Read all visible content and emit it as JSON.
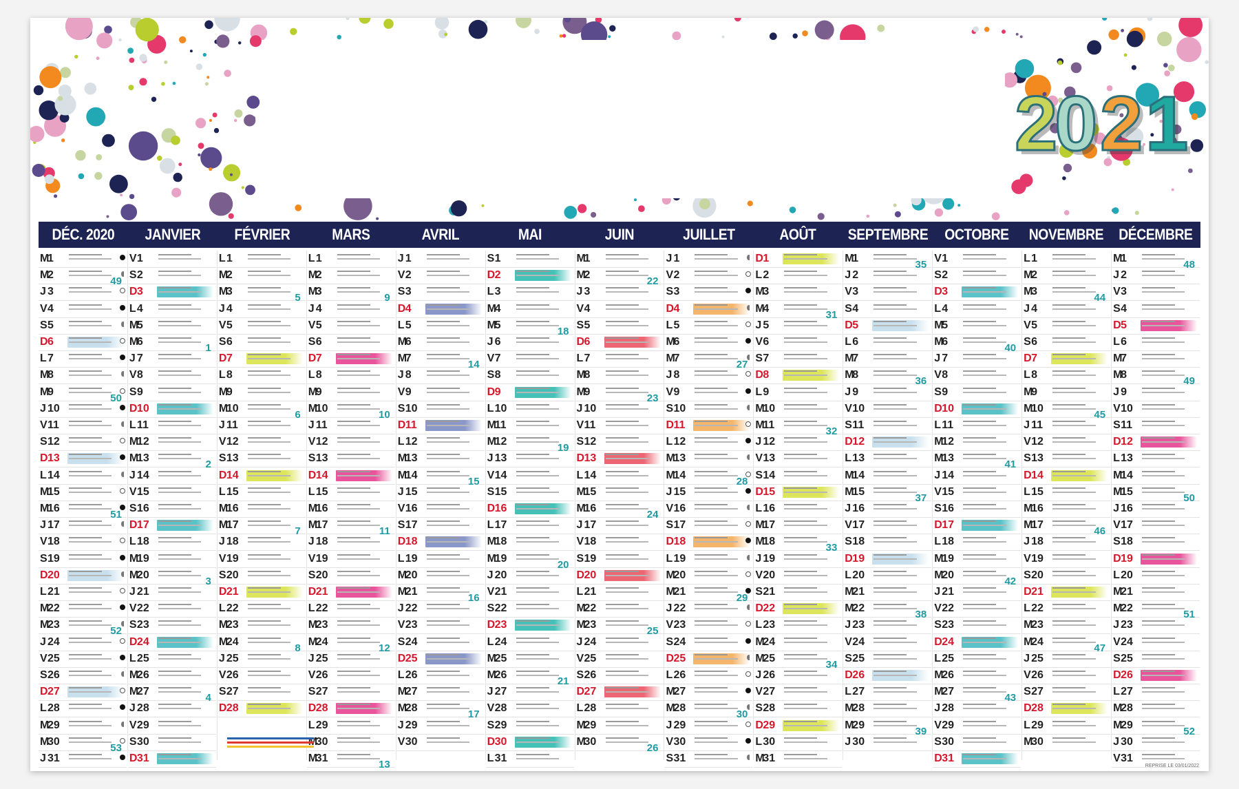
{
  "calendar": {
    "year_logo": "2021",
    "months": [
      {
        "label": "DÉC. 2020",
        "days": 31,
        "start": 2
      },
      {
        "label": "JANVIER",
        "days": 31,
        "start": 5
      },
      {
        "label": "FÉVRIER",
        "days": 28,
        "start": 1
      },
      {
        "label": "MARS",
        "days": 31,
        "start": 1
      },
      {
        "label": "AVRIL",
        "days": 30,
        "start": 4
      },
      {
        "label": "MAI",
        "days": 31,
        "start": 6
      },
      {
        "label": "JUIN",
        "days": 30,
        "start": 2
      },
      {
        "label": "JUILLET",
        "days": 31,
        "start": 4
      },
      {
        "label": "AOÛT",
        "days": 31,
        "start": 0
      },
      {
        "label": "SEPTEMBRE",
        "days": 30,
        "start": 3
      },
      {
        "label": "OCTOBRE",
        "days": 31,
        "start": 5
      },
      {
        "label": "NOVEMBRE",
        "days": 30,
        "start": 1
      },
      {
        "label": "DÉCEMBRE",
        "days": 31,
        "start": 3
      }
    ],
    "day_letters": [
      "D",
      "L",
      "M",
      "M",
      "J",
      "V",
      "S"
    ],
    "week_numbers": [
      {
        "col": 0,
        "day": 2,
        "n": "49"
      },
      {
        "col": 0,
        "day": 9,
        "n": "50"
      },
      {
        "col": 0,
        "day": 16,
        "n": "51"
      },
      {
        "col": 0,
        "day": 23,
        "n": "52"
      },
      {
        "col": 0,
        "day": 30,
        "n": "53"
      },
      {
        "col": 1,
        "day": 6,
        "n": "1"
      },
      {
        "col": 1,
        "day": 13,
        "n": "2"
      },
      {
        "col": 1,
        "day": 20,
        "n": "3"
      },
      {
        "col": 1,
        "day": 27,
        "n": "4"
      },
      {
        "col": 2,
        "day": 3,
        "n": "5"
      },
      {
        "col": 2,
        "day": 10,
        "n": "6"
      },
      {
        "col": 2,
        "day": 17,
        "n": "7"
      },
      {
        "col": 2,
        "day": 24,
        "n": "8"
      },
      {
        "col": 3,
        "day": 3,
        "n": "9"
      },
      {
        "col": 3,
        "day": 10,
        "n": "10"
      },
      {
        "col": 3,
        "day": 17,
        "n": "11"
      },
      {
        "col": 3,
        "day": 24,
        "n": "12"
      },
      {
        "col": 3,
        "day": 31,
        "n": "13"
      },
      {
        "col": 4,
        "day": 7,
        "n": "14"
      },
      {
        "col": 4,
        "day": 14,
        "n": "15"
      },
      {
        "col": 4,
        "day": 21,
        "n": "16"
      },
      {
        "col": 4,
        "day": 28,
        "n": "17"
      },
      {
        "col": 5,
        "day": 5,
        "n": "18"
      },
      {
        "col": 5,
        "day": 12,
        "n": "19"
      },
      {
        "col": 5,
        "day": 19,
        "n": "20"
      },
      {
        "col": 5,
        "day": 26,
        "n": "21"
      },
      {
        "col": 6,
        "day": 2,
        "n": "22"
      },
      {
        "col": 6,
        "day": 9,
        "n": "23"
      },
      {
        "col": 6,
        "day": 16,
        "n": "24"
      },
      {
        "col": 6,
        "day": 23,
        "n": "25"
      },
      {
        "col": 6,
        "day": 30,
        "n": "26"
      },
      {
        "col": 7,
        "day": 7,
        "n": "27"
      },
      {
        "col": 7,
        "day": 14,
        "n": "28"
      },
      {
        "col": 7,
        "day": 21,
        "n": "29"
      },
      {
        "col": 7,
        "day": 28,
        "n": "30"
      },
      {
        "col": 8,
        "day": 4,
        "n": "31"
      },
      {
        "col": 8,
        "day": 11,
        "n": "32"
      },
      {
        "col": 8,
        "day": 18,
        "n": "33"
      },
      {
        "col": 8,
        "day": 25,
        "n": "34"
      },
      {
        "col": 9,
        "day": 1,
        "n": "35"
      },
      {
        "col": 9,
        "day": 8,
        "n": "36"
      },
      {
        "col": 9,
        "day": 15,
        "n": "37"
      },
      {
        "col": 9,
        "day": 22,
        "n": "38"
      },
      {
        "col": 9,
        "day": 29,
        "n": "39"
      },
      {
        "col": 10,
        "day": 6,
        "n": "40"
      },
      {
        "col": 10,
        "day": 13,
        "n": "41"
      },
      {
        "col": 10,
        "day": 20,
        "n": "42"
      },
      {
        "col": 10,
        "day": 27,
        "n": "43"
      },
      {
        "col": 11,
        "day": 3,
        "n": "44"
      },
      {
        "col": 11,
        "day": 10,
        "n": "45"
      },
      {
        "col": 11,
        "day": 17,
        "n": "46"
      },
      {
        "col": 11,
        "day": 24,
        "n": "47"
      },
      {
        "col": 12,
        "day": 1,
        "n": "48"
      },
      {
        "col": 12,
        "day": 8,
        "n": "49"
      },
      {
        "col": 12,
        "day": 15,
        "n": "50"
      },
      {
        "col": 12,
        "day": 22,
        "n": "51"
      },
      {
        "col": 12,
        "day": 29,
        "n": "52"
      }
    ],
    "highlights": [
      {
        "col": 0,
        "day": 6,
        "c": "#c8e0ee"
      },
      {
        "col": 0,
        "day": 13,
        "c": "#c8e0ee"
      },
      {
        "col": 0,
        "day": 20,
        "c": "#c8e0ee"
      },
      {
        "col": 0,
        "day": 27,
        "c": "#c8e0ee"
      },
      {
        "col": 1,
        "day": 3,
        "c": "#5bc3c8"
      },
      {
        "col": 1,
        "day": 10,
        "c": "#5bc3c8"
      },
      {
        "col": 1,
        "day": 17,
        "c": "#5bc3c8"
      },
      {
        "col": 1,
        "day": 24,
        "c": "#5bc3c8"
      },
      {
        "col": 1,
        "day": 31,
        "c": "#5bc3c8"
      },
      {
        "col": 2,
        "day": 7,
        "c": "#dde65a"
      },
      {
        "col": 2,
        "day": 14,
        "c": "#dde65a"
      },
      {
        "col": 2,
        "day": 21,
        "c": "#dde65a"
      },
      {
        "col": 2,
        "day": 28,
        "c": "#dde65a"
      },
      {
        "col": 3,
        "day": 7,
        "c": "#e9559c"
      },
      {
        "col": 3,
        "day": 14,
        "c": "#e9559c"
      },
      {
        "col": 3,
        "day": 21,
        "c": "#e9559c"
      },
      {
        "col": 3,
        "day": 28,
        "c": "#e9559c"
      },
      {
        "col": 4,
        "day": 4,
        "c": "#8a97c9"
      },
      {
        "col": 4,
        "day": 11,
        "c": "#8a97c9"
      },
      {
        "col": 4,
        "day": 18,
        "c": "#8a97c9"
      },
      {
        "col": 4,
        "day": 25,
        "c": "#8a97c9"
      },
      {
        "col": 5,
        "day": 2,
        "c": "#45c1b8"
      },
      {
        "col": 5,
        "day": 9,
        "c": "#45c1b8"
      },
      {
        "col": 5,
        "day": 16,
        "c": "#45c1b8"
      },
      {
        "col": 5,
        "day": 23,
        "c": "#45c1b8"
      },
      {
        "col": 5,
        "day": 30,
        "c": "#45c1b8"
      },
      {
        "col": 6,
        "day": 6,
        "c": "#ec6673"
      },
      {
        "col": 6,
        "day": 13,
        "c": "#ec6673"
      },
      {
        "col": 6,
        "day": 20,
        "c": "#ec6673"
      },
      {
        "col": 6,
        "day": 27,
        "c": "#ec6673"
      },
      {
        "col": 7,
        "day": 4,
        "c": "#f3b66b"
      },
      {
        "col": 7,
        "day": 11,
        "c": "#f3b66b"
      },
      {
        "col": 7,
        "day": 18,
        "c": "#f3b66b"
      },
      {
        "col": 7,
        "day": 25,
        "c": "#f3b66b"
      },
      {
        "col": 8,
        "day": 1,
        "c": "#dde65a"
      },
      {
        "col": 8,
        "day": 8,
        "c": "#dde65a"
      },
      {
        "col": 8,
        "day": 15,
        "c": "#dde65a"
      },
      {
        "col": 8,
        "day": 22,
        "c": "#dde65a"
      },
      {
        "col": 8,
        "day": 29,
        "c": "#dde65a"
      },
      {
        "col": 9,
        "day": 5,
        "c": "#c8e0ee"
      },
      {
        "col": 9,
        "day": 12,
        "c": "#c8e0ee"
      },
      {
        "col": 9,
        "day": 19,
        "c": "#c8e0ee"
      },
      {
        "col": 9,
        "day": 26,
        "c": "#c8e0ee"
      },
      {
        "col": 10,
        "day": 3,
        "c": "#5bc3c8"
      },
      {
        "col": 10,
        "day": 10,
        "c": "#5bc3c8"
      },
      {
        "col": 10,
        "day": 17,
        "c": "#5bc3c8"
      },
      {
        "col": 10,
        "day": 24,
        "c": "#5bc3c8"
      },
      {
        "col": 10,
        "day": 31,
        "c": "#5bc3c8"
      },
      {
        "col": 11,
        "day": 7,
        "c": "#dde65a"
      },
      {
        "col": 11,
        "day": 14,
        "c": "#dde65a"
      },
      {
        "col": 11,
        "day": 21,
        "c": "#dde65a"
      },
      {
        "col": 11,
        "day": 28,
        "c": "#dde65a"
      },
      {
        "col": 12,
        "day": 5,
        "c": "#e9559c"
      },
      {
        "col": 12,
        "day": 12,
        "c": "#e9559c"
      },
      {
        "col": 12,
        "day": 19,
        "c": "#e9559c"
      },
      {
        "col": 12,
        "day": 26,
        "c": "#e9559c"
      }
    ],
    "colors": {
      "header_bg": "#1d2454",
      "sunday": "#d6172b",
      "week_number": "#1f9ba3"
    },
    "footer_note": "REPRISE LE 03/01/2022"
  }
}
